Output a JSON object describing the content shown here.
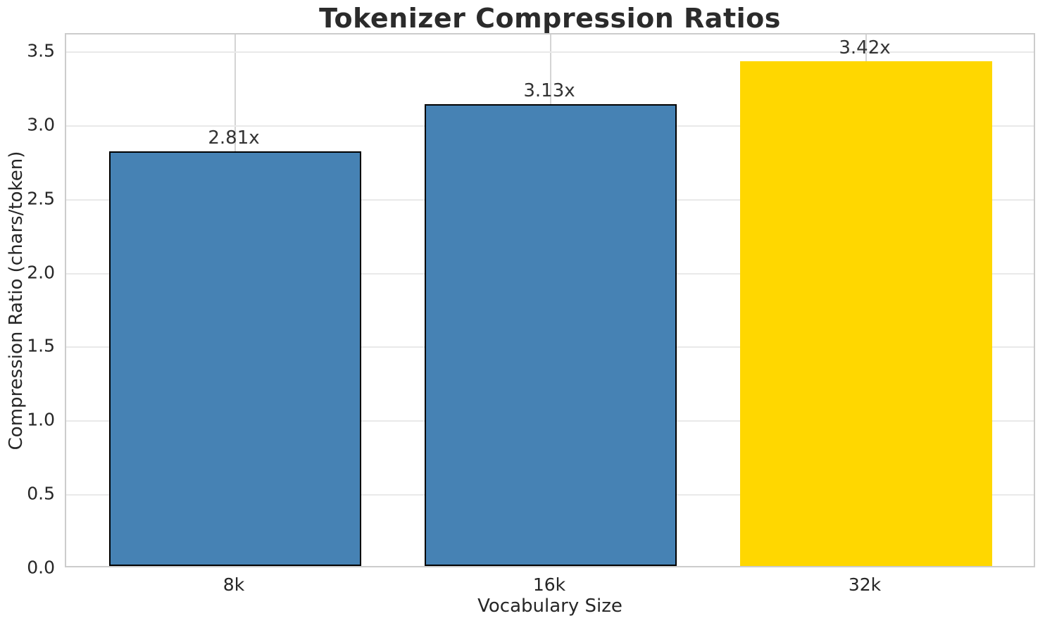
{
  "chart_data": {
    "type": "bar",
    "title": "Tokenizer Compression Ratios",
    "xlabel": "Vocabulary Size",
    "ylabel": "Compression Ratio (chars/token)",
    "categories": [
      "8k",
      "16k",
      "32k"
    ],
    "values": [
      2.81,
      3.13,
      3.42
    ],
    "bar_labels": [
      "2.81x",
      "3.13x",
      "3.42x"
    ],
    "bar_colors": [
      "#4682b4",
      "#4682b4",
      "#ffd700"
    ],
    "bar_edge_colors": [
      "#000000",
      "#000000",
      "none"
    ],
    "yticks": [
      0.0,
      0.5,
      1.0,
      1.5,
      2.0,
      2.5,
      3.0,
      3.5
    ],
    "ytick_labels": [
      "0.0",
      "0.5",
      "1.0",
      "1.5",
      "2.0",
      "2.5",
      "3.0",
      "3.5"
    ],
    "ylim": [
      0,
      3.62
    ],
    "grid": true,
    "legend": "none",
    "colors": {
      "bar_primary": "#4682b4",
      "bar_highlight": "#ffd700",
      "grid_horizontal": "#e9e9e9",
      "grid_vertical": "#d4d4d4",
      "spine": "#cccccc",
      "text": "#262626",
      "title": "#2b2b2b"
    }
  }
}
